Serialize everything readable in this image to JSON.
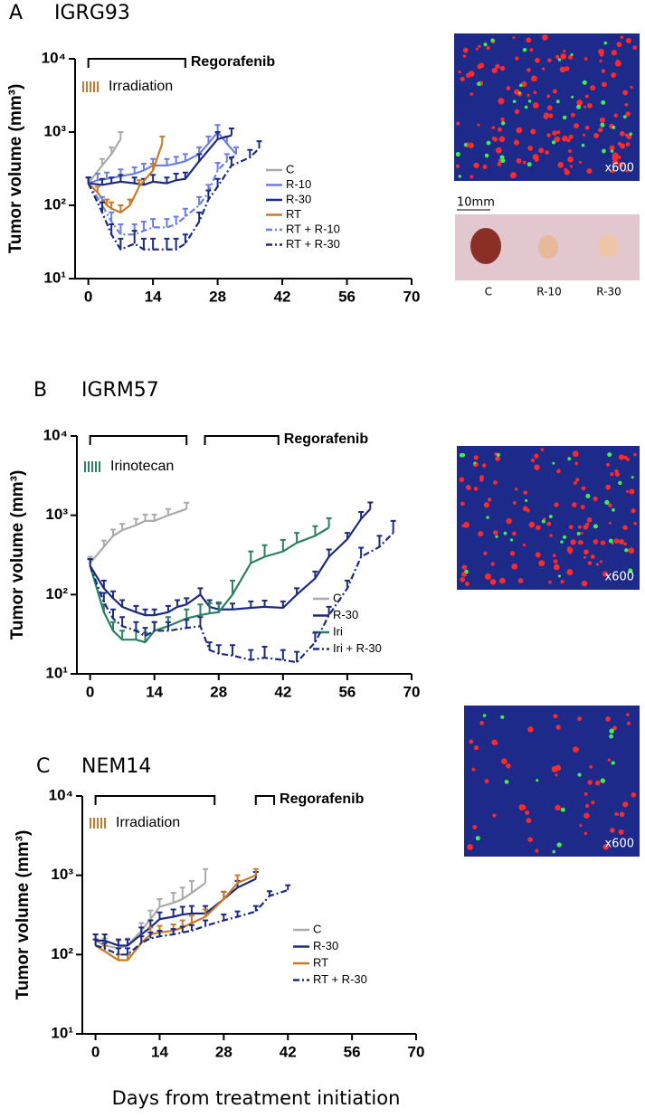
{
  "chart_data": [
    {
      "type": "line",
      "panel": "A",
      "title": "IGRG93",
      "ylabel": "Tumor volume (mm³)",
      "log_y": true,
      "xlim": [
        -1.5,
        70
      ],
      "xticks": [
        0,
        14,
        28,
        42,
        56,
        70
      ],
      "ylim": [
        10,
        10000
      ],
      "yticks": [
        {
          "value": 10,
          "label": "10¹"
        },
        {
          "value": 100,
          "label": "10²"
        },
        {
          "value": 1000,
          "label": "10³"
        },
        {
          "value": 10000,
          "label": "10⁴"
        }
      ],
      "treatments": [
        {
          "label": "Regorafenib",
          "start": 0,
          "end": 21
        }
      ],
      "annotation": {
        "text": "Irradiation",
        "color": "#c87a2a"
      },
      "series": [
        {
          "name": "C",
          "color": "#aaaaaa",
          "dash": "solid",
          "x": [
            0,
            3,
            5,
            7
          ],
          "values": [
            200,
            350,
            500,
            800
          ],
          "errors": [
            40,
            80,
            120,
            200
          ]
        },
        {
          "name": "R-10",
          "color": "#6b7fe0",
          "dash": "solid",
          "x": [
            0,
            2,
            4,
            7,
            10,
            12,
            14,
            17,
            19,
            21,
            24,
            26,
            28,
            30,
            32
          ],
          "values": [
            200,
            220,
            230,
            250,
            270,
            300,
            350,
            350,
            370,
            400,
            500,
            700,
            1000,
            700,
            500
          ],
          "errors": [
            40,
            50,
            50,
            60,
            60,
            70,
            80,
            80,
            90,
            100,
            120,
            170,
            250,
            170,
            120
          ]
        },
        {
          "name": "R-30",
          "color": "#1c2b80",
          "dash": "solid",
          "x": [
            0,
            3,
            5,
            7,
            10,
            12,
            14,
            17,
            19,
            21,
            24,
            28,
            31
          ],
          "values": [
            200,
            190,
            200,
            210,
            200,
            190,
            210,
            200,
            220,
            230,
            400,
            800,
            900
          ],
          "errors": [
            40,
            40,
            40,
            50,
            40,
            40,
            50,
            40,
            50,
            50,
            100,
            200,
            220
          ]
        },
        {
          "name": "RT",
          "color": "#c87a2a",
          "dash": "solid",
          "x": [
            0,
            2,
            4,
            5,
            7,
            9,
            11,
            14,
            16
          ],
          "values": [
            200,
            150,
            100,
            90,
            80,
            100,
            180,
            300,
            700
          ],
          "errors": [
            40,
            30,
            20,
            20,
            20,
            20,
            40,
            70,
            170
          ]
        },
        {
          "name": "RT + R-10",
          "color": "#6b7fe0",
          "dash": "dashdot",
          "x": [
            0,
            3,
            5,
            7,
            10,
            12,
            14,
            17,
            19,
            21,
            24,
            26,
            28,
            30,
            32
          ],
          "values": [
            200,
            100,
            60,
            40,
            40,
            45,
            50,
            50,
            55,
            70,
            100,
            150,
            300,
            400,
            500
          ],
          "errors": [
            40,
            30,
            20,
            15,
            15,
            15,
            15,
            15,
            15,
            20,
            30,
            40,
            80,
            100,
            120
          ]
        },
        {
          "name": "RT + R-30",
          "color": "#1c2b80",
          "dash": "dashdot",
          "x": [
            0,
            3,
            5,
            7,
            10,
            12,
            14,
            17,
            19,
            21,
            24,
            26,
            28,
            31,
            35,
            37
          ],
          "values": [
            200,
            80,
            40,
            25,
            30,
            25,
            25,
            25,
            25,
            30,
            60,
            120,
            180,
            350,
            450,
            600
          ],
          "errors": [
            40,
            30,
            15,
            10,
            15,
            10,
            10,
            10,
            10,
            10,
            20,
            40,
            50,
            100,
            120,
            150
          ]
        }
      ]
    },
    {
      "type": "line",
      "panel": "B",
      "title": "IGRM57",
      "ylabel": "Tumor volume (mm³)",
      "log_y": true,
      "xlim": [
        -1.5,
        70
      ],
      "xticks": [
        0,
        14,
        28,
        42,
        56,
        70
      ],
      "ylim": [
        10,
        10000
      ],
      "yticks": [
        {
          "value": 10,
          "label": "10¹"
        },
        {
          "value": 100,
          "label": "10²"
        },
        {
          "value": 1000,
          "label": "10³"
        },
        {
          "value": 10000,
          "label": "10⁴"
        }
      ],
      "treatments": [
        {
          "label": "Regorafenib",
          "start": 0,
          "end": 21
        },
        {
          "label": "Regorafenib",
          "start": 25,
          "end": 41
        }
      ],
      "annotation": {
        "text": "Irinotecan",
        "color": "#2a8060"
      },
      "series": [
        {
          "name": "C",
          "color": "#aaaaaa",
          "dash": "solid",
          "x": [
            0,
            3,
            5,
            7,
            10,
            12,
            14,
            17,
            21
          ],
          "values": [
            250,
            400,
            550,
            650,
            750,
            850,
            850,
            1000,
            1200
          ],
          "errors": [
            50,
            80,
            110,
            130,
            150,
            170,
            170,
            200,
            240
          ]
        },
        {
          "name": "R-30",
          "color": "#1c2b80",
          "dash": "solid",
          "x": [
            0,
            3,
            5,
            7,
            10,
            12,
            14,
            17,
            19,
            21,
            24,
            26,
            28,
            31,
            35,
            38,
            42,
            45,
            49,
            52,
            56,
            59,
            61
          ],
          "values": [
            230,
            120,
            90,
            70,
            60,
            55,
            55,
            60,
            70,
            75,
            100,
            70,
            65,
            65,
            68,
            70,
            68,
            100,
            160,
            300,
            500,
            900,
            1200
          ],
          "errors": [
            50,
            30,
            20,
            15,
            12,
            10,
            10,
            12,
            15,
            15,
            20,
            15,
            12,
            12,
            14,
            14,
            14,
            20,
            35,
            70,
            100,
            200,
            250
          ]
        },
        {
          "name": "Iri",
          "color": "#2a8060",
          "dash": "solid",
          "x": [
            0,
            3,
            5,
            7,
            10,
            12,
            14,
            17,
            21,
            24,
            26,
            28,
            31,
            35,
            38,
            42,
            45,
            49,
            52
          ],
          "values": [
            230,
            60,
            35,
            27,
            27,
            25,
            35,
            40,
            50,
            55,
            58,
            60,
            100,
            250,
            300,
            350,
            450,
            550,
            700
          ],
          "errors": [
            50,
            15,
            10,
            8,
            8,
            8,
            10,
            12,
            15,
            20,
            20,
            20,
            50,
            100,
            120,
            140,
            150,
            180,
            220
          ]
        },
        {
          "name": "Iri + R-30",
          "color": "#1c2b80",
          "dash": "dashdot",
          "x": [
            0,
            3,
            5,
            7,
            10,
            12,
            14,
            17,
            21,
            24,
            26,
            28,
            31,
            35,
            38,
            42,
            45,
            49,
            52,
            56,
            59,
            63,
            66
          ],
          "values": [
            230,
            80,
            50,
            40,
            35,
            30,
            35,
            35,
            38,
            40,
            20,
            18,
            17,
            15,
            16,
            15,
            14,
            25,
            55,
            120,
            300,
            400,
            600
          ],
          "errors": [
            50,
            25,
            15,
            12,
            10,
            8,
            10,
            10,
            10,
            12,
            5,
            5,
            6,
            5,
            6,
            5,
            5,
            8,
            15,
            30,
            90,
            150,
            250
          ]
        }
      ]
    },
    {
      "type": "line",
      "panel": "C",
      "title": "NEM14",
      "ylabel": "Tumor volume (mm³)",
      "xlabel": "Days from treatment initiation",
      "log_y": true,
      "xlim": [
        -1.5,
        70
      ],
      "xticks": [
        0,
        14,
        28,
        42,
        56,
        70
      ],
      "ylim": [
        10,
        10000
      ],
      "yticks": [
        {
          "value": 10,
          "label": "10¹"
        },
        {
          "value": 100,
          "label": "10²"
        },
        {
          "value": 1000,
          "label": "10³"
        },
        {
          "value": 10000,
          "label": "10⁴"
        }
      ],
      "treatments": [
        {
          "label": "Regorafenib",
          "start": 0,
          "end": 26
        },
        {
          "label": "Regorafenib",
          "start": 35,
          "end": 39
        }
      ],
      "annotation": {
        "text": "Irradiation",
        "color": "#c87a2a"
      },
      "series": [
        {
          "name": "C",
          "color": "#aaaaaa",
          "dash": "solid",
          "x": [
            0,
            2,
            5,
            7,
            10,
            12,
            14,
            17,
            19,
            21,
            24
          ],
          "values": [
            150,
            130,
            120,
            130,
            200,
            280,
            400,
            450,
            500,
            600,
            800
          ],
          "errors": [
            30,
            30,
            30,
            30,
            50,
            80,
            100,
            150,
            200,
            250,
            400
          ]
        },
        {
          "name": "R-30",
          "color": "#1c2b80",
          "dash": "solid",
          "x": [
            0,
            2,
            5,
            7,
            10,
            12,
            14,
            17,
            19,
            21,
            24,
            28,
            31,
            35
          ],
          "values": [
            150,
            150,
            130,
            130,
            180,
            220,
            280,
            300,
            320,
            330,
            330,
            500,
            700,
            900
          ],
          "errors": [
            30,
            30,
            25,
            25,
            40,
            50,
            60,
            70,
            80,
            80,
            80,
            120,
            150,
            200
          ]
        },
        {
          "name": "RT",
          "color": "#c87a2a",
          "dash": "solid",
          "x": [
            0,
            2,
            5,
            7,
            10,
            12,
            14,
            17,
            19,
            21,
            24,
            28,
            31,
            35
          ],
          "values": [
            130,
            110,
            85,
            85,
            140,
            180,
            190,
            200,
            220,
            250,
            300,
            500,
            800,
            1000
          ],
          "errors": [
            25,
            20,
            15,
            15,
            30,
            40,
            40,
            40,
            50,
            60,
            70,
            120,
            200,
            200
          ]
        },
        {
          "name": "RT + R-30",
          "color": "#1c2b80",
          "dash": "dashdot",
          "x": [
            0,
            2,
            5,
            7,
            10,
            12,
            14,
            17,
            19,
            21,
            24,
            28,
            31,
            35,
            38,
            42
          ],
          "values": [
            130,
            120,
            100,
            100,
            140,
            160,
            170,
            180,
            190,
            200,
            230,
            270,
            300,
            350,
            550,
            650
          ],
          "errors": [
            25,
            20,
            20,
            20,
            30,
            30,
            30,
            30,
            35,
            35,
            40,
            50,
            50,
            60,
            80,
            100
          ]
        }
      ]
    }
  ],
  "images": [
    {
      "magnification": "x600"
    },
    {
      "magnification": "x600"
    },
    {
      "magnification": "x600"
    }
  ],
  "photo": {
    "scale": "10mm",
    "labels": [
      "C",
      "R-10",
      "R-30"
    ]
  }
}
